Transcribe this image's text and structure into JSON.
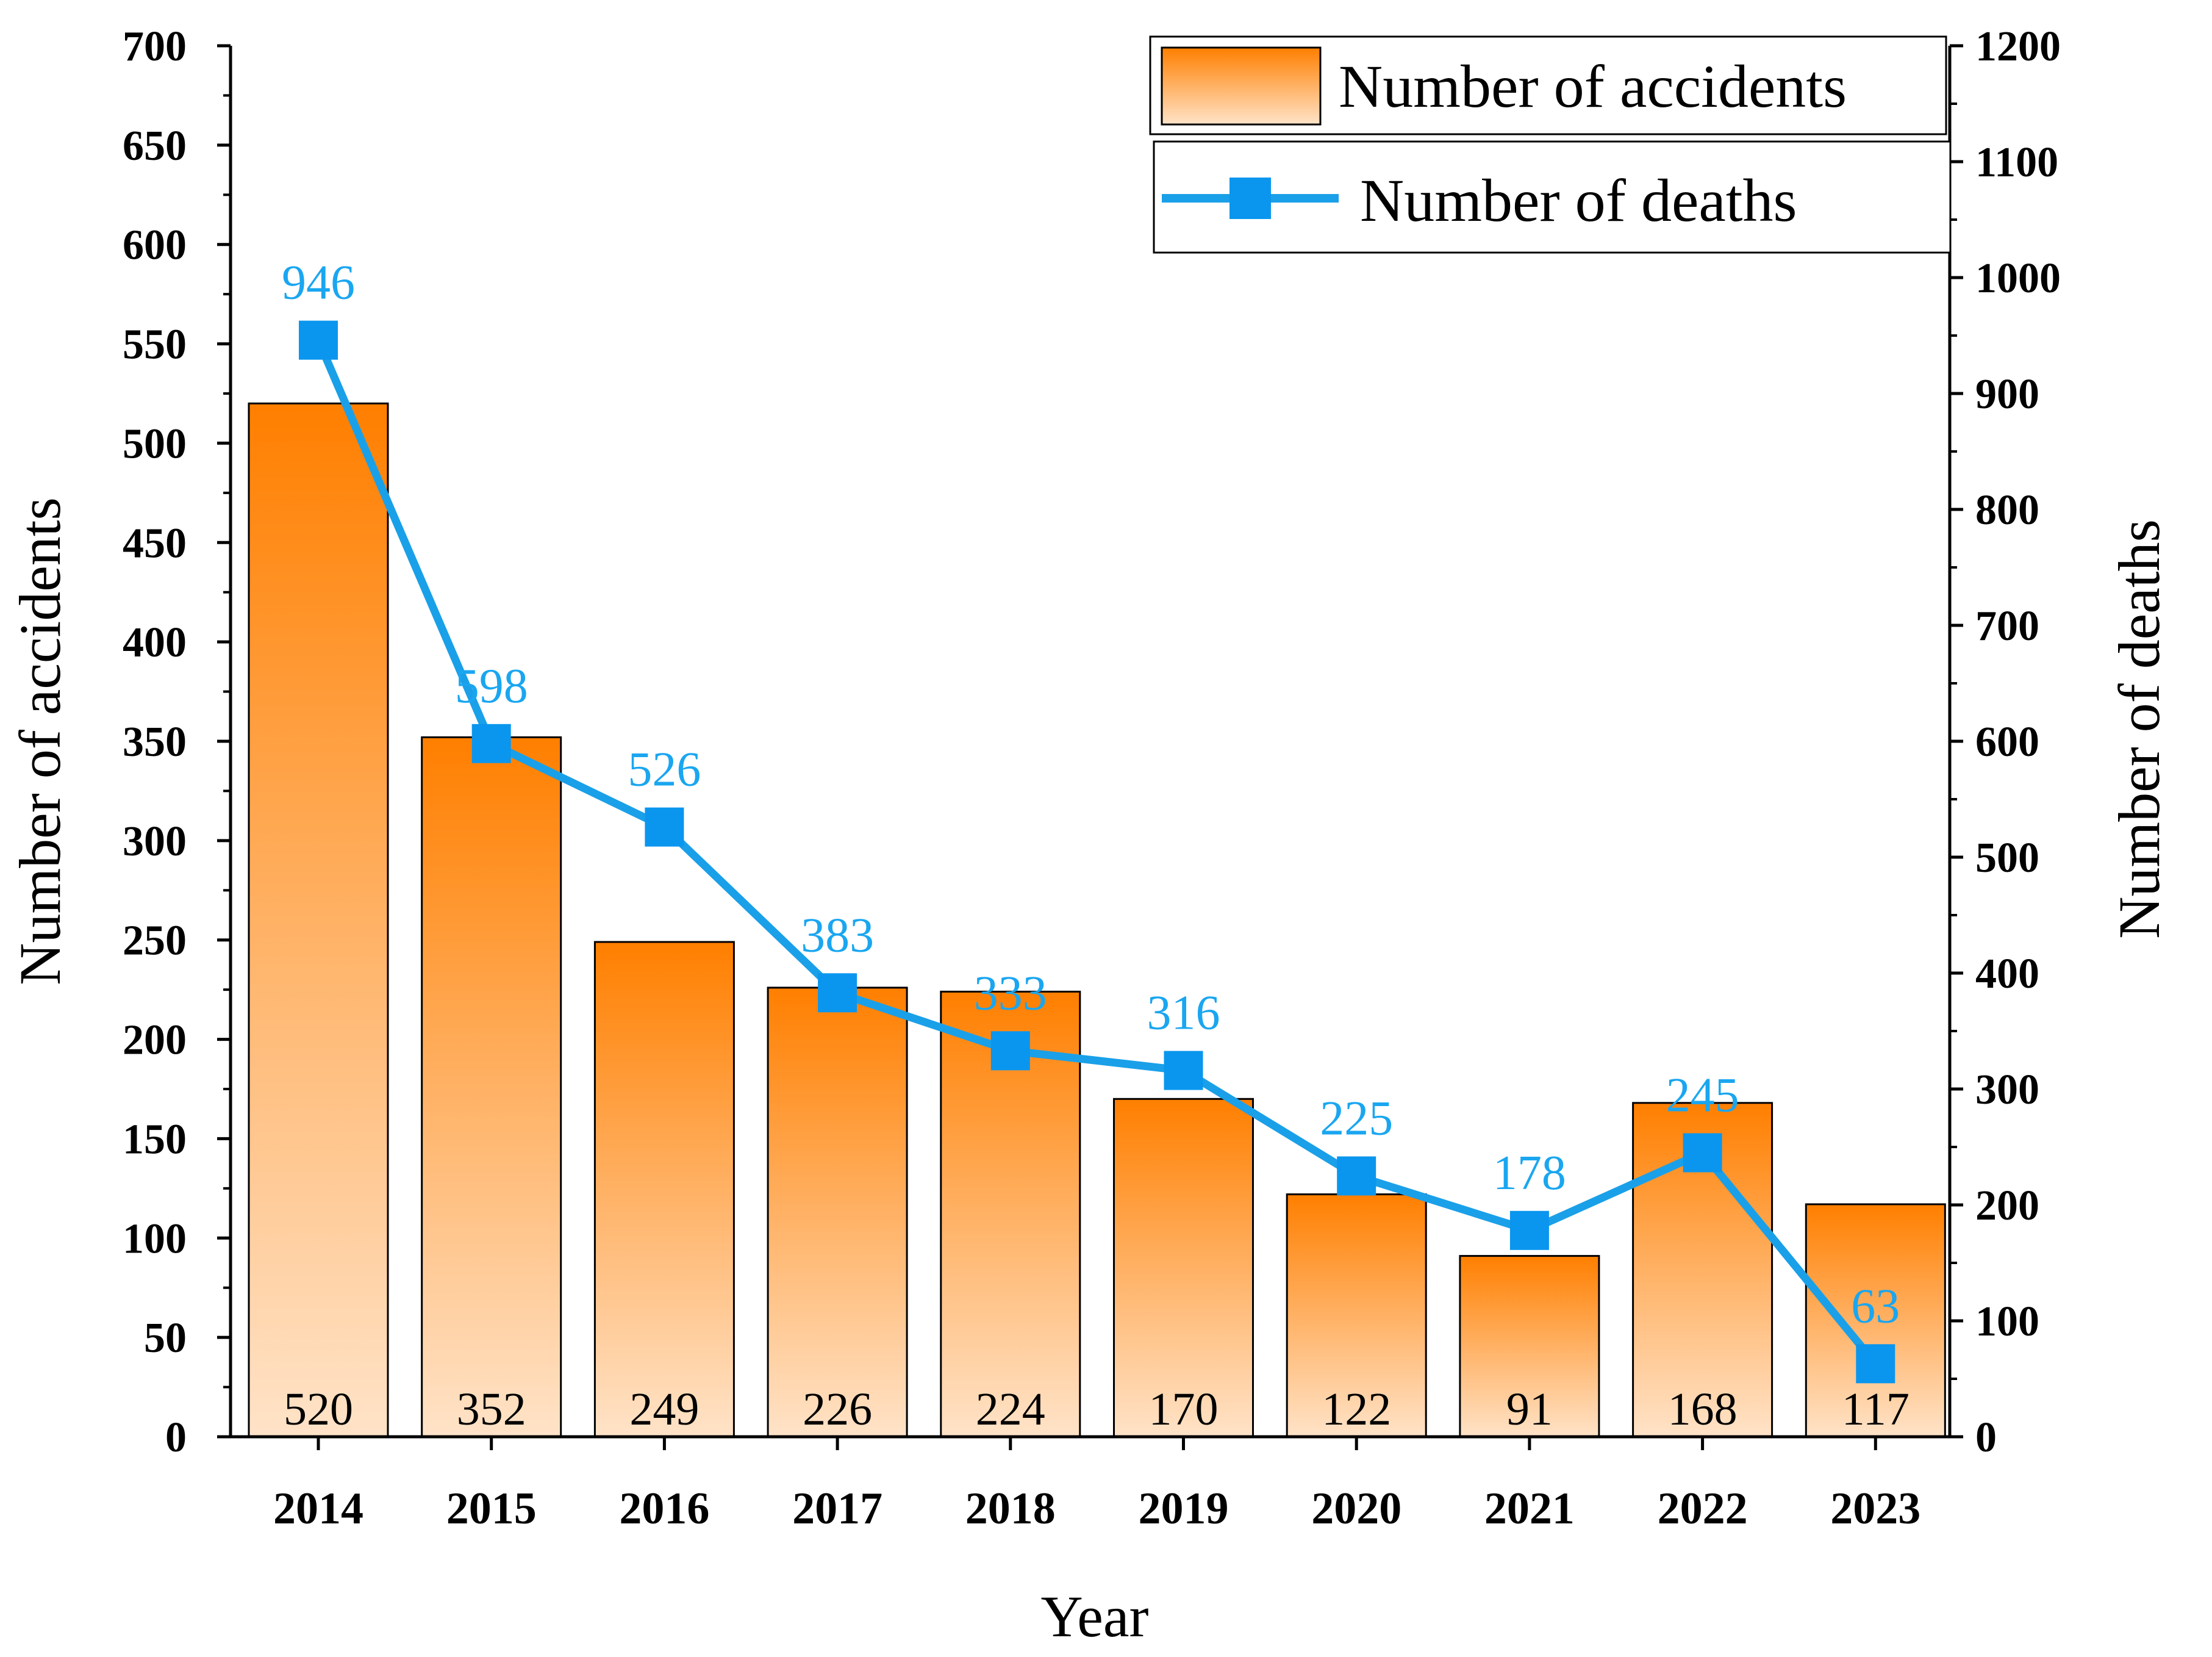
{
  "chart_data": {
    "type": "bar+line",
    "xlabel": "Year",
    "categories": [
      "2014",
      "2015",
      "2016",
      "2017",
      "2018",
      "2019",
      "2020",
      "2021",
      "2022",
      "2023"
    ],
    "y_left": {
      "label": "Number of accidents",
      "ylim": [
        0,
        700
      ],
      "ticks": [
        0,
        50,
        100,
        150,
        200,
        250,
        300,
        350,
        400,
        450,
        500,
        550,
        600,
        650,
        700
      ]
    },
    "y_right": {
      "label": "Number of deaths",
      "ylim": [
        0,
        1200
      ],
      "ticks": [
        0,
        100,
        200,
        300,
        400,
        500,
        600,
        700,
        800,
        900,
        1000,
        1100,
        1200
      ]
    },
    "series": [
      {
        "name": "Number of accidents",
        "type": "bar",
        "axis": "left",
        "values": [
          520,
          352,
          249,
          226,
          224,
          170,
          122,
          91,
          168,
          117
        ]
      },
      {
        "name": "Number of deaths",
        "type": "line",
        "axis": "right",
        "marker": "square",
        "values": [
          946,
          598,
          526,
          383,
          333,
          316,
          225,
          178,
          245,
          63
        ]
      }
    ],
    "colors": {
      "bar_top": "#ff7f00",
      "bar_bottom": "#ffe3c8",
      "line": "#1aa0e8",
      "marker": "#0a96ee",
      "label": "#1aa6f0"
    },
    "grid": false,
    "legend": "top-right"
  }
}
